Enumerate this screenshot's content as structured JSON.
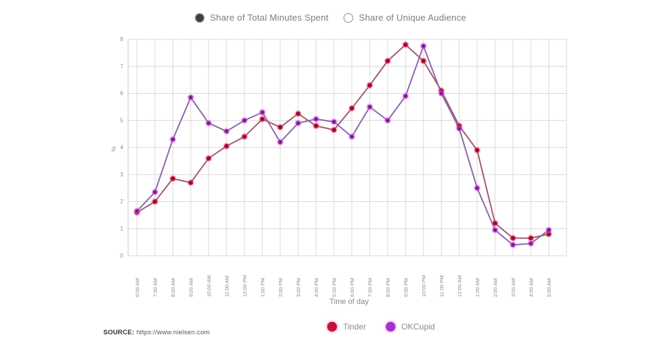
{
  "controls": {
    "radio_options": [
      {
        "label": "Share of Total Minutes Spent",
        "selected": true
      },
      {
        "label": "Share of Unique Audience",
        "selected": false
      }
    ]
  },
  "chart_data": {
    "type": "line",
    "title": "",
    "xlabel": "Time of day",
    "ylabel": "%",
    "ylim": [
      0,
      8
    ],
    "yticks": [
      0,
      1,
      2,
      3,
      4,
      5,
      6,
      7,
      8
    ],
    "grid": true,
    "legend_position": "bottom",
    "x": [
      "6:00 AM",
      "7:00 AM",
      "8:00 AM",
      "9:00 AM",
      "10:00 AM",
      "11:00 AM",
      "12:00 PM",
      "1:00 PM",
      "2:00 PM",
      "3:00 PM",
      "4:00 PM",
      "5:00 PM",
      "6:00 PM",
      "7:00 PM",
      "8:00 PM",
      "9:00 PM",
      "10:00 PM",
      "11:00 PM",
      "12:00 AM",
      "1:00 AM",
      "2:00 AM",
      "3:00 AM",
      "4:00 AM",
      "5:00 AM"
    ],
    "series": [
      {
        "name": "Tinder",
        "color": "#c2103c",
        "halo_color": "#ff4d6e",
        "line_color": "#a05e72",
        "values": [
          1.6,
          2.0,
          2.85,
          2.7,
          3.6,
          4.05,
          4.4,
          5.05,
          4.75,
          5.25,
          4.8,
          4.65,
          5.45,
          6.3,
          7.2,
          7.8,
          7.2,
          6.1,
          4.8,
          3.9,
          1.2,
          0.65,
          0.65,
          0.8
        ]
      },
      {
        "name": "OKCupid",
        "color": "#a033cc",
        "halo_color": "#ff5ce6",
        "line_color": "#8f68a8",
        "values": [
          1.65,
          2.35,
          4.3,
          5.85,
          4.9,
          4.6,
          5.0,
          5.3,
          4.2,
          4.9,
          5.05,
          4.95,
          4.4,
          5.5,
          5.0,
          5.9,
          7.75,
          6.0,
          4.7,
          2.5,
          0.95,
          0.4,
          0.45,
          0.95
        ]
      }
    ],
    "theme": {
      "grid_color": "#d9d9d9",
      "axis_text_color": "#8c8c8c"
    }
  },
  "footer": {
    "source_label": "SOURCE:",
    "source_url": "https://www.nielsen.com"
  }
}
